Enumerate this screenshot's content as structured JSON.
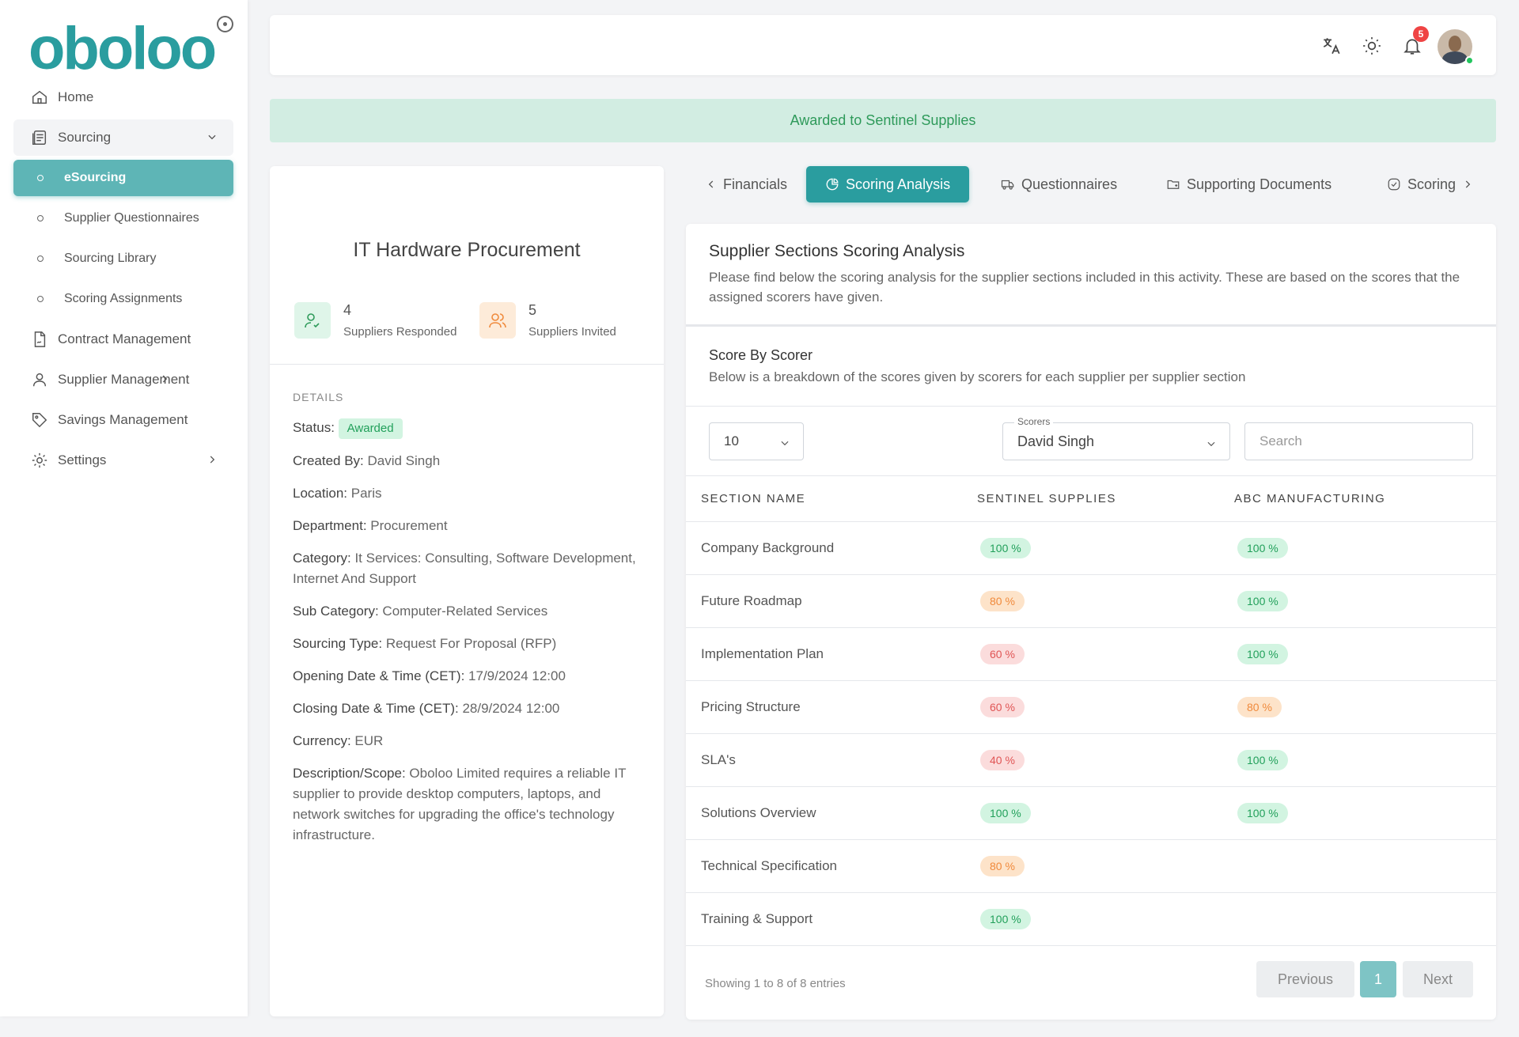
{
  "app": {
    "logo": "oboloo"
  },
  "sidebar": {
    "home": "Home",
    "sourcing": "Sourcing",
    "esourcing": "eSourcing",
    "supplier_questionnaires": "Supplier Questionnaires",
    "sourcing_library": "Sourcing Library",
    "scoring_assignments": "Scoring Assignments",
    "contract_management": "Contract Management",
    "supplier_management": "Supplier Management",
    "savings_management": "Savings Management",
    "settings": "Settings"
  },
  "topbar": {
    "notification_count": "5"
  },
  "banner": "Awarded to Sentinel Supplies",
  "project": {
    "title": "IT Hardware Procurement",
    "responded_count": "4",
    "responded_label": "Suppliers Responded",
    "invited_count": "5",
    "invited_label": "Suppliers Invited",
    "details_heading": "DETAILS",
    "status_label": "Status:",
    "status_value": "Awarded",
    "created_by_label": "Created By:",
    "created_by": "David Singh",
    "location_label": "Location:",
    "location": "Paris",
    "department_label": "Department:",
    "department": "Procurement",
    "category_label": "Category:",
    "category": "It Services: Consulting, Software Development, Internet And Support",
    "sub_category_label": "Sub Category:",
    "sub_category": "Computer-Related Services",
    "sourcing_type_label": "Sourcing Type:",
    "sourcing_type": "Request For Proposal (RFP)",
    "opening_label": "Opening Date & Time (CET):",
    "opening": "17/9/2024 12:00",
    "closing_label": "Closing Date & Time (CET):",
    "closing": "28/9/2024 12:00",
    "currency_label": "Currency:",
    "currency": "EUR",
    "description_label": "Description/Scope:",
    "description": "Oboloo Limited requires a reliable IT supplier to provide desktop computers, laptops, and network switches for upgrading the office's technology infrastructure."
  },
  "tabs": {
    "financials": "Financials",
    "scoring_analysis": "Scoring Analysis",
    "questionnaires": "Questionnaires",
    "supporting_documents": "Supporting Documents",
    "scoring": "Scoring"
  },
  "analysis": {
    "title": "Supplier Sections Scoring Analysis",
    "description": "Please find below the scoring analysis for the supplier sections included in this activity. These are based on the scores that the assigned scorers have given.",
    "sub_title": "Score By Scorer",
    "sub_description": "Below is a breakdown of the scores given by scorers for each supplier per supplier section",
    "page_length": "10",
    "scorers_label": "Scorers",
    "scorer_selected": "David Singh",
    "search_placeholder": "Search",
    "columns": [
      "SECTION NAME",
      "SENTINEL SUPPLIES",
      "ABC MANUFACTURING"
    ],
    "rows": [
      {
        "section": "Company Background",
        "sentinel": "100 %",
        "sentinel_level": "g",
        "abc": "100 %",
        "abc_level": "g"
      },
      {
        "section": "Future Roadmap",
        "sentinel": "80 %",
        "sentinel_level": "o",
        "abc": "100 %",
        "abc_level": "g"
      },
      {
        "section": "Implementation Plan",
        "sentinel": "60 %",
        "sentinel_level": "r",
        "abc": "100 %",
        "abc_level": "g"
      },
      {
        "section": "Pricing Structure",
        "sentinel": "60 %",
        "sentinel_level": "r",
        "abc": "80 %",
        "abc_level": "o"
      },
      {
        "section": "SLA's",
        "sentinel": "40 %",
        "sentinel_level": "r",
        "abc": "100 %",
        "abc_level": "g"
      },
      {
        "section": "Solutions Overview",
        "sentinel": "100 %",
        "sentinel_level": "g",
        "abc": "100 %",
        "abc_level": "g"
      },
      {
        "section": "Technical Specification",
        "sentinel": "80 %",
        "sentinel_level": "o",
        "abc": "",
        "abc_level": ""
      },
      {
        "section": "Training & Support",
        "sentinel": "100 %",
        "sentinel_level": "g",
        "abc": "",
        "abc_level": ""
      }
    ],
    "showing": "Showing 1 to 8 of 8 entries",
    "previous": "Previous",
    "page": "1",
    "next": "Next"
  }
}
